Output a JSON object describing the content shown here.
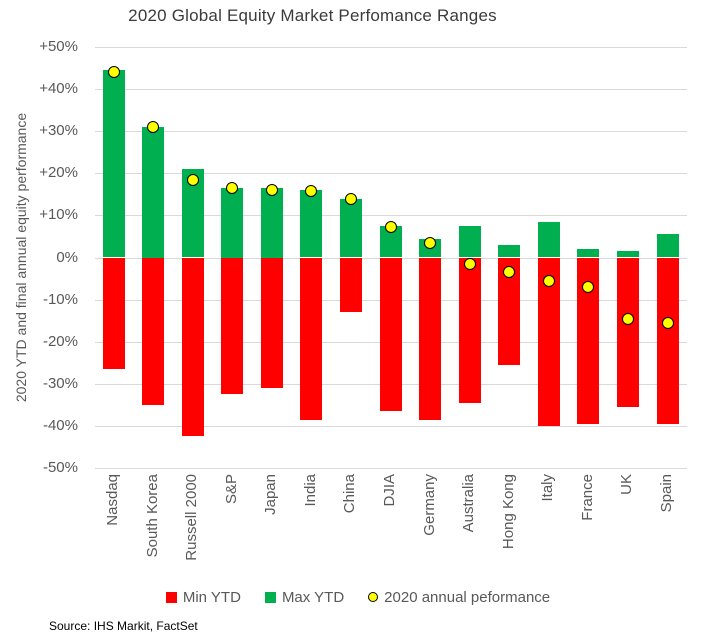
{
  "chart_data": {
    "type": "bar",
    "title": "2020 Global Equity Market Perfomance Ranges",
    "ylabel": "2020 YTD and final annual equity performance",
    "xlabel": "",
    "ylim": [
      -50,
      50
    ],
    "yticks": [
      "+50%",
      "+40%",
      "+30%",
      "+20%",
      "+10%",
      "0%",
      "-10%",
      "-20%",
      "-30%",
      "-40%",
      "-50%"
    ],
    "grid": true,
    "legend_position": "bottom",
    "categories": [
      "Nasdaq",
      "South Korea",
      "Russell 2000",
      "S&P",
      "Japan",
      "India",
      "China",
      "DJIA",
      "Germany",
      "Australia",
      "Hong Kong",
      "Italy",
      "France",
      "UK",
      "Spain"
    ],
    "series": [
      {
        "name": "Min YTD",
        "type": "bar",
        "color": "#ff0000",
        "values": [
          -26.5,
          -35,
          -42.5,
          -32.5,
          -31,
          -38.5,
          -13,
          -36.5,
          -38.5,
          -34.5,
          -25.5,
          -40,
          -39.5,
          -35.5,
          -39.5
        ]
      },
      {
        "name": "Max YTD",
        "type": "bar",
        "color": "#00b050",
        "values": [
          44.5,
          31,
          21,
          16.5,
          16.5,
          16,
          14,
          7.5,
          4.5,
          7.5,
          3,
          8.5,
          2,
          1.5,
          5.5
        ]
      },
      {
        "name": "2020 annual peformance",
        "type": "scatter",
        "color": "#ffff00",
        "values": [
          44,
          31,
          18.5,
          16.5,
          16,
          15.8,
          14,
          7.2,
          3.5,
          -1.5,
          -3.5,
          -5.5,
          -7,
          -14.5,
          -15.5
        ]
      }
    ]
  },
  "source": "Source: IHS Markit, FactSet",
  "colors": {
    "min_bar": "#ff0000",
    "max_bar": "#00b050",
    "annual_dot": "#ffff00",
    "gridline": "#d9d9d9",
    "axis_text": "#595959",
    "title_text": "#3b3b3b"
  }
}
